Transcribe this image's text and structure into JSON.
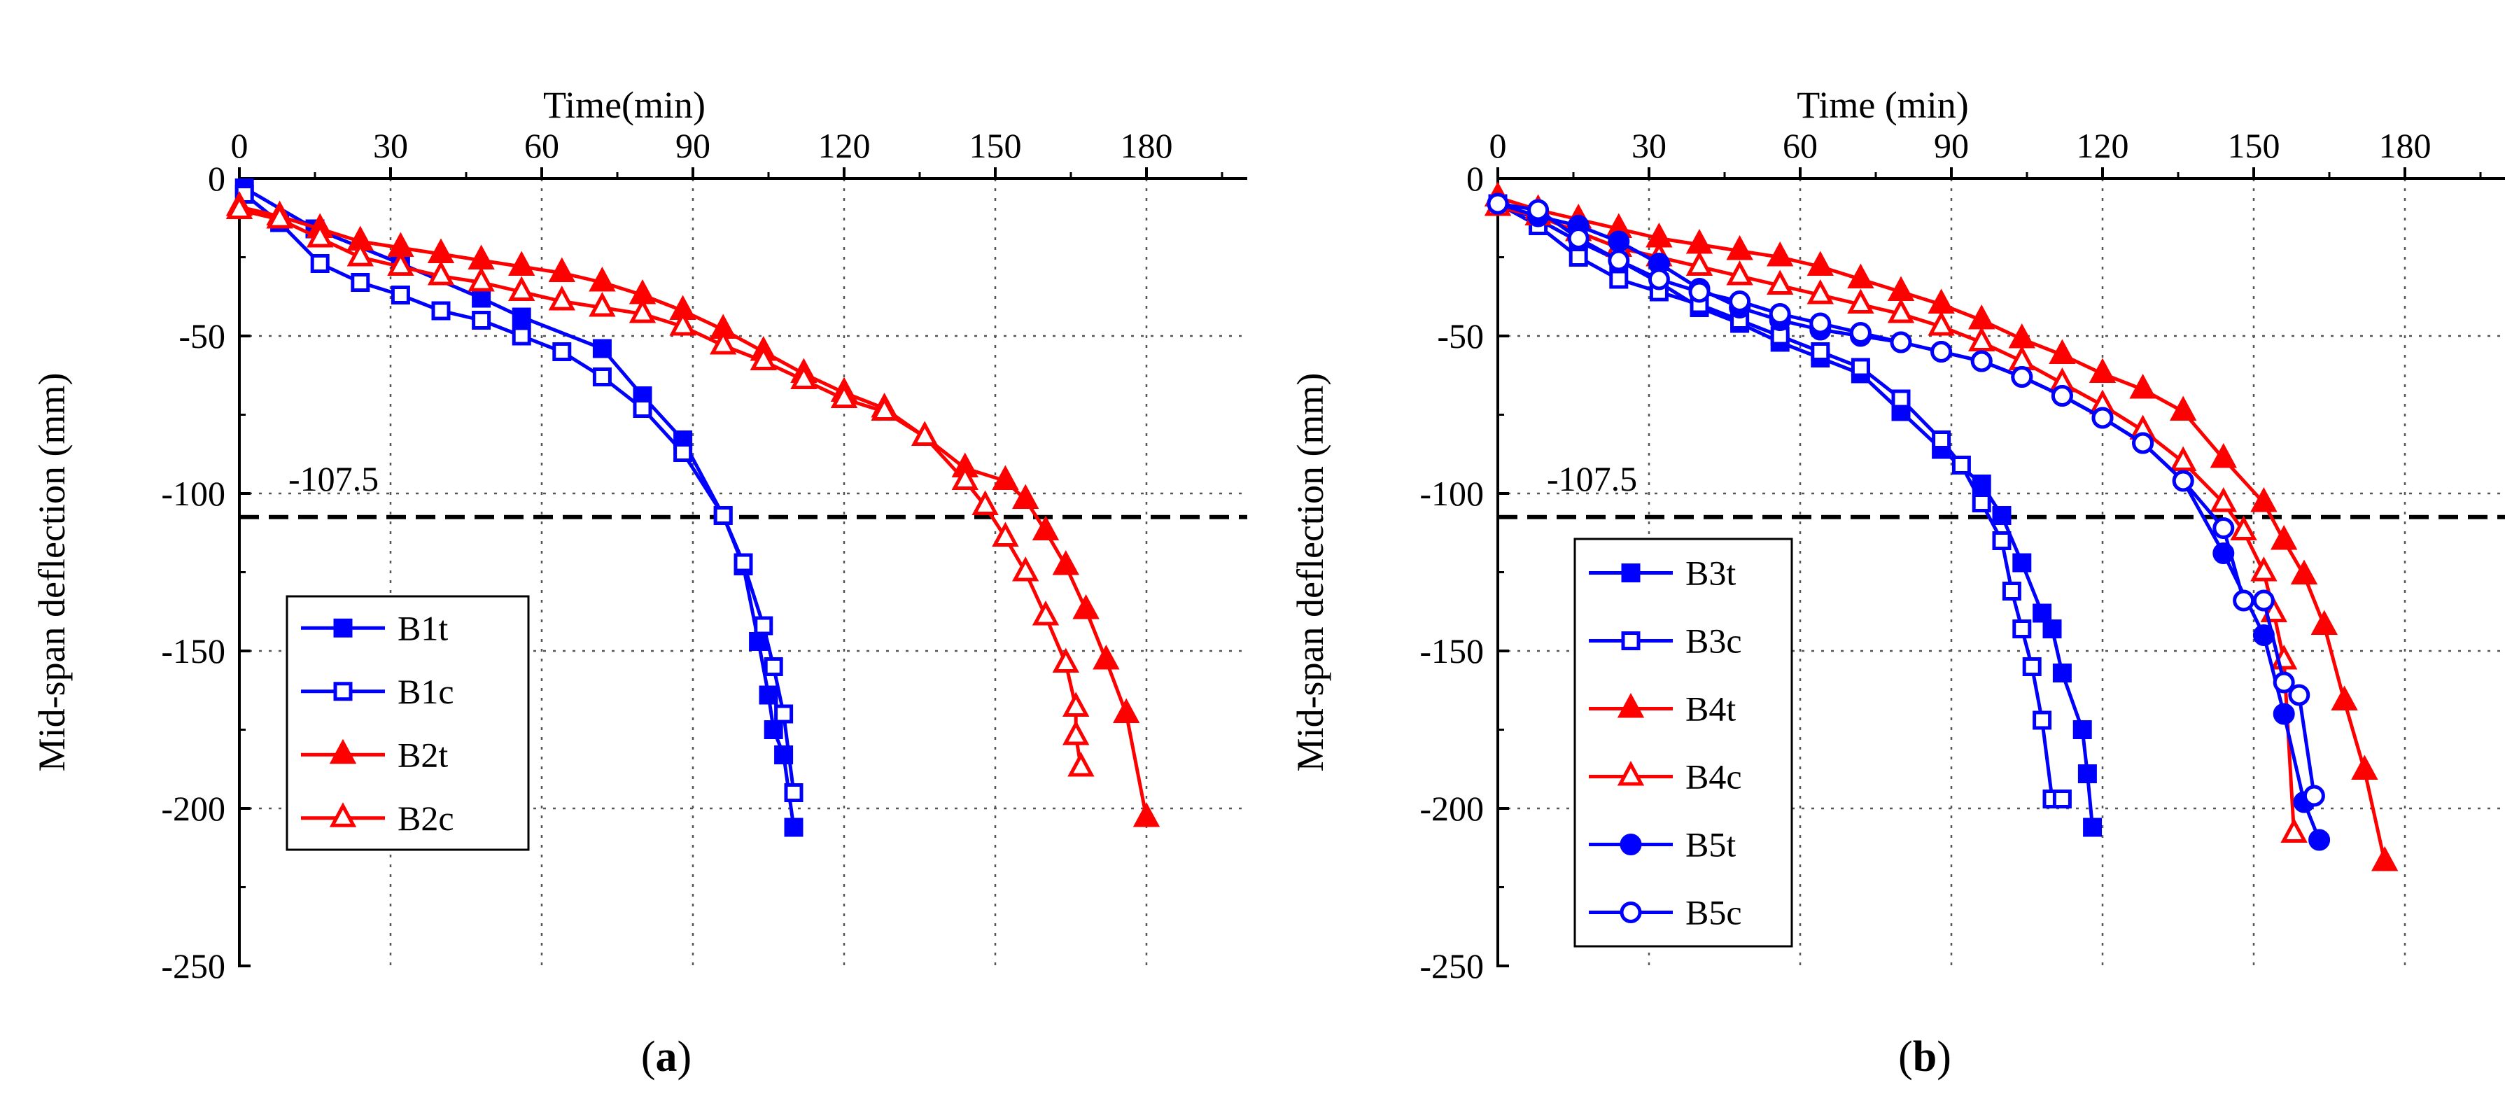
{
  "chart_data": [
    {
      "type": "line",
      "panel_label": "a",
      "xlabel": "Time(min)",
      "ylabel": "Mid-span deflection (mm)",
      "xlim": [
        0,
        200
      ],
      "ylim": [
        -250,
        0
      ],
      "xticks": [
        0,
        30,
        60,
        90,
        120,
        150,
        180
      ],
      "yticks": [
        0,
        -50,
        -100,
        -150,
        -200,
        -250
      ],
      "grid": true,
      "reference_line": {
        "y": -107.5,
        "label": "-107.5"
      },
      "legend_position": "lower-left",
      "series": [
        {
          "name": "B1t",
          "color": "#0000ff",
          "marker": "square",
          "filled": true,
          "x": [
            1,
            15,
            32,
            48,
            56,
            72,
            80,
            88,
            96,
            100,
            103,
            105,
            106,
            108,
            110
          ],
          "y": [
            -3,
            -16,
            -27,
            -38,
            -44,
            -54,
            -69,
            -83,
            -107,
            -123,
            -147,
            -164,
            -175,
            -183,
            -206
          ]
        },
        {
          "name": "B1c",
          "color": "#0000ff",
          "marker": "square",
          "filled": false,
          "x": [
            1,
            8,
            16,
            24,
            32,
            40,
            48,
            56,
            64,
            72,
            80,
            88,
            96,
            100,
            104,
            106,
            108,
            110
          ],
          "y": [
            -5,
            -14,
            -27,
            -33,
            -37,
            -42,
            -45,
            -50,
            -55,
            -63,
            -73,
            -87,
            -107,
            -122,
            -142,
            -155,
            -170,
            -195
          ]
        },
        {
          "name": "B2t",
          "color": "#ff0000",
          "marker": "triangle",
          "filled": true,
          "x": [
            0,
            8,
            16,
            24,
            32,
            40,
            48,
            56,
            64,
            72,
            80,
            88,
            96,
            104,
            112,
            120,
            128,
            136,
            144,
            152,
            156,
            160,
            164,
            168,
            172,
            176,
            180
          ],
          "y": [
            -9,
            -12,
            -16,
            -20,
            -22,
            -24,
            -26,
            -28,
            -30,
            -33,
            -37,
            -42,
            -48,
            -55,
            -62,
            -68,
            -73,
            -82,
            -92,
            -96,
            -102,
            -112,
            -123,
            -137,
            -153,
            -170,
            -203
          ]
        },
        {
          "name": "B2c",
          "color": "#ff0000",
          "marker": "triangle",
          "filled": false,
          "x": [
            0,
            8,
            16,
            24,
            32,
            40,
            48,
            56,
            64,
            72,
            80,
            88,
            96,
            104,
            112,
            120,
            128,
            136,
            144,
            148,
            152,
            156,
            160,
            164,
            166,
            166,
            167
          ],
          "y": [
            -10,
            -13,
            -19,
            -25,
            -28,
            -31,
            -33,
            -36,
            -39,
            -41,
            -43,
            -47,
            -53,
            -58,
            -64,
            -70,
            -74,
            -82,
            -96,
            -104,
            -114,
            -125,
            -139,
            -154,
            -168,
            -177,
            -187
          ]
        }
      ]
    },
    {
      "type": "line",
      "panel_label": "b",
      "xlabel": "Time (min)",
      "ylabel": "Mid-span deflection (mm)",
      "xlim": [
        0,
        200
      ],
      "ylim": [
        -250,
        0
      ],
      "xticks": [
        0,
        30,
        60,
        90,
        120,
        150,
        180
      ],
      "yticks": [
        0,
        -50,
        -100,
        -150,
        -200,
        -250
      ],
      "grid": true,
      "reference_line": {
        "y": -107.5,
        "label": "-107.5"
      },
      "legend_position": "lower-left",
      "series": [
        {
          "name": "B3t",
          "color": "#0000ff",
          "marker": "square",
          "filled": true,
          "x": [
            0,
            8,
            16,
            24,
            32,
            40,
            48,
            56,
            64,
            72,
            80,
            88,
            96,
            100,
            104,
            108,
            110,
            112,
            116,
            117,
            118
          ],
          "y": [
            -8,
            -13,
            -20,
            -26,
            -33,
            -41,
            -46,
            -52,
            -57,
            -62,
            -74,
            -86,
            -97,
            -107,
            -122,
            -138,
            -143,
            -157,
            -175,
            -189,
            -206
          ]
        },
        {
          "name": "B3c",
          "color": "#0000ff",
          "marker": "square",
          "filled": false,
          "x": [
            0,
            8,
            16,
            24,
            32,
            40,
            48,
            56,
            64,
            72,
            80,
            88,
            92,
            96,
            100,
            102,
            104,
            106,
            108,
            110,
            112
          ],
          "y": [
            -8,
            -15,
            -25,
            -32,
            -36,
            -40,
            -45,
            -50,
            -55,
            -60,
            -70,
            -83,
            -91,
            -103,
            -115,
            -131,
            -143,
            -155,
            -172,
            -197,
            -197
          ]
        },
        {
          "name": "B4t",
          "color": "#ff0000",
          "marker": "triangle",
          "filled": true,
          "x": [
            0,
            8,
            16,
            24,
            32,
            40,
            48,
            56,
            64,
            72,
            80,
            88,
            96,
            104,
            112,
            120,
            128,
            136,
            144,
            152,
            156,
            160,
            164,
            168,
            172,
            176
          ],
          "y": [
            -6,
            -10,
            -13,
            -16,
            -19,
            -21,
            -23,
            -25,
            -28,
            -32,
            -36,
            -40,
            -45,
            -51,
            -56,
            -62,
            -67,
            -74,
            -89,
            -103,
            -115,
            -126,
            -142,
            -166,
            -188,
            -217
          ]
        },
        {
          "name": "B4c",
          "color": "#ff0000",
          "marker": "triangle",
          "filled": false,
          "x": [
            0,
            8,
            16,
            24,
            32,
            40,
            48,
            56,
            64,
            72,
            80,
            88,
            96,
            104,
            112,
            120,
            128,
            136,
            144,
            148,
            152,
            154,
            156,
            158
          ],
          "y": [
            -9,
            -12,
            -17,
            -22,
            -25,
            -28,
            -31,
            -34,
            -37,
            -40,
            -43,
            -47,
            -52,
            -58,
            -65,
            -72,
            -80,
            -90,
            -103,
            -112,
            -125,
            -138,
            -153,
            -208
          ]
        },
        {
          "name": "B5t",
          "color": "#0000ff",
          "marker": "circle",
          "filled": true,
          "x": [
            0,
            8,
            16,
            24,
            32,
            40,
            48,
            56,
            64,
            72,
            80,
            88,
            96,
            104,
            112,
            120,
            128,
            136,
            144,
            152,
            156,
            160,
            163
          ],
          "y": [
            -8,
            -12,
            -15,
            -20,
            -27,
            -35,
            -41,
            -45,
            -48,
            -50,
            -52,
            -55,
            -58,
            -63,
            -69,
            -76,
            -84,
            -96,
            -119,
            -145,
            -170,
            -198,
            -210
          ]
        },
        {
          "name": "B5c",
          "color": "#0000ff",
          "marker": "circle",
          "filled": false,
          "x": [
            0,
            8,
            16,
            24,
            32,
            40,
            48,
            56,
            64,
            72,
            80,
            88,
            96,
            104,
            112,
            120,
            128,
            136,
            144,
            148,
            152,
            156,
            159,
            162
          ],
          "y": [
            -8,
            -10,
            -19,
            -26,
            -32,
            -36,
            -39,
            -43,
            -46,
            -49,
            -52,
            -55,
            -58,
            -63,
            -69,
            -76,
            -84,
            -96,
            -111,
            -134,
            -134,
            -160,
            -164,
            -196
          ]
        }
      ]
    }
  ]
}
